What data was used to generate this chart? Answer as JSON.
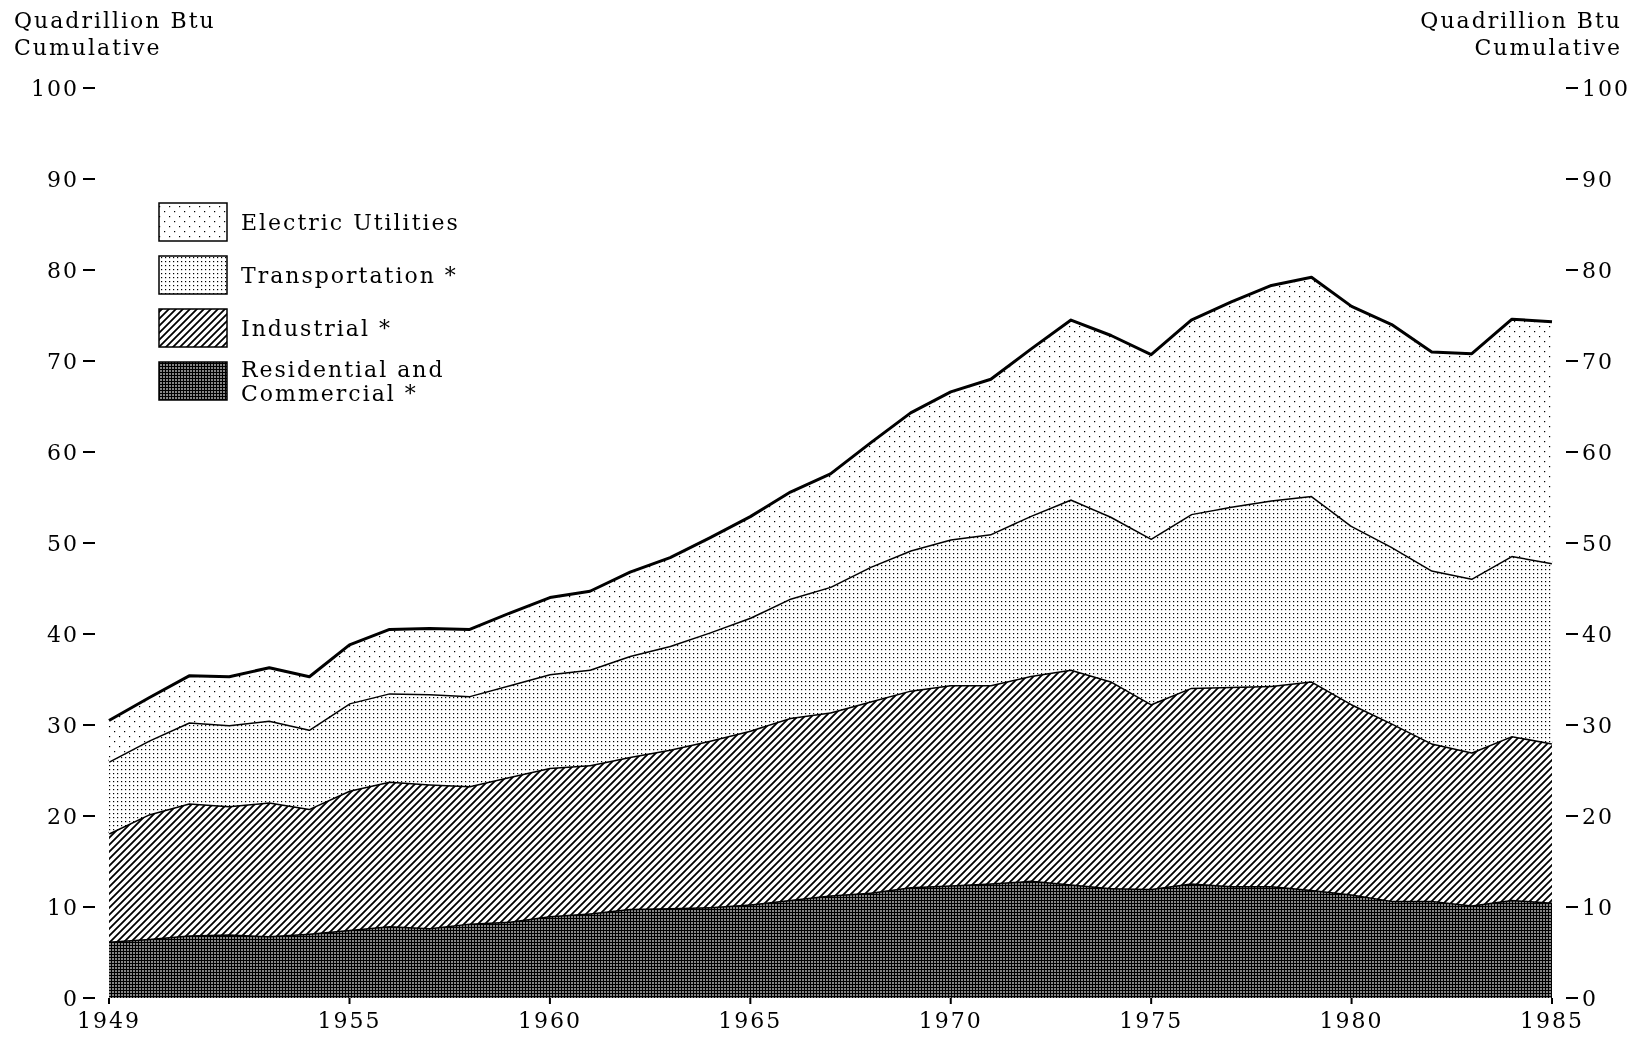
{
  "chart_data": {
    "type": "area",
    "stacked": true,
    "ylabel": "Quadrillion Btu\nCumulative",
    "y2label": "Quadrillion Btu\nCumulative",
    "x": [
      1949,
      1950,
      1951,
      1952,
      1953,
      1954,
      1955,
      1956,
      1957,
      1958,
      1959,
      1960,
      1961,
      1962,
      1963,
      1964,
      1965,
      1966,
      1967,
      1968,
      1969,
      1970,
      1971,
      1972,
      1973,
      1974,
      1975,
      1976,
      1977,
      1978,
      1979,
      1980,
      1981,
      1982,
      1983,
      1984,
      1985
    ],
    "xlim": [
      1949,
      1985
    ],
    "xticks": [
      1949,
      1955,
      1960,
      1965,
      1970,
      1975,
      1980,
      1985
    ],
    "ylim": [
      0,
      100
    ],
    "yticks": [
      0,
      10,
      20,
      30,
      40,
      50,
      60,
      70,
      80,
      90,
      100
    ],
    "y2lim": [
      0,
      100
    ],
    "y2ticks": [
      0,
      10,
      20,
      30,
      40,
      50,
      60,
      70,
      80,
      90,
      100
    ],
    "legend": "top left",
    "grid": false,
    "series": [
      {
        "name": "Residential and Commercial *",
        "color": "#000000",
        "values": [
          6.2,
          6.5,
          6.9,
          7.0,
          6.8,
          7.1,
          7.5,
          7.9,
          7.7,
          8.2,
          8.4,
          9.0,
          9.3,
          9.8,
          9.9,
          10.0,
          10.3,
          10.8,
          11.3,
          11.6,
          12.2,
          12.4,
          12.6,
          12.9,
          12.5,
          12.1,
          12.0,
          12.6,
          12.3,
          12.3,
          11.9,
          11.4,
          10.7,
          10.7,
          10.2,
          10.8,
          10.5
        ]
      },
      {
        "name": "Industrial *",
        "color": "#000000",
        "values": [
          11.9,
          13.7,
          14.5,
          14.1,
          14.7,
          13.7,
          15.3,
          15.9,
          15.8,
          15.1,
          15.9,
          16.3,
          16.3,
          16.7,
          17.4,
          18.3,
          19.1,
          20.0,
          20.1,
          21.0,
          21.6,
          22.0,
          21.8,
          22.5,
          23.6,
          22.7,
          20.3,
          21.5,
          21.9,
          22.0,
          22.9,
          20.9,
          19.5,
          17.3,
          16.8,
          18.0,
          17.5
        ]
      },
      {
        "name": "Transportation *",
        "color": "#000000",
        "values": [
          7.9,
          8.1,
          8.9,
          8.9,
          9.0,
          8.7,
          9.6,
          9.7,
          9.9,
          9.9,
          10.1,
          10.3,
          10.5,
          11.1,
          11.4,
          11.9,
          12.4,
          13.1,
          13.8,
          14.8,
          15.4,
          16.0,
          16.6,
          17.6,
          18.7,
          18.1,
          18.2,
          19.1,
          19.8,
          20.4,
          20.4,
          19.6,
          19.4,
          19.0,
          19.1,
          19.8,
          19.8
        ]
      },
      {
        "name": "Electric Utilities",
        "color": "#000000",
        "values": [
          4.5,
          4.7,
          5.1,
          5.3,
          5.8,
          5.8,
          6.4,
          7.0,
          7.2,
          7.3,
          7.9,
          8.4,
          8.6,
          9.2,
          9.7,
          10.4,
          11.1,
          11.7,
          12.4,
          13.6,
          15.1,
          16.2,
          17.0,
          18.3,
          19.7,
          19.9,
          20.2,
          21.3,
          22.5,
          23.6,
          24.0,
          24.1,
          24.4,
          24.0,
          24.7,
          26.0,
          26.5
        ]
      }
    ]
  }
}
